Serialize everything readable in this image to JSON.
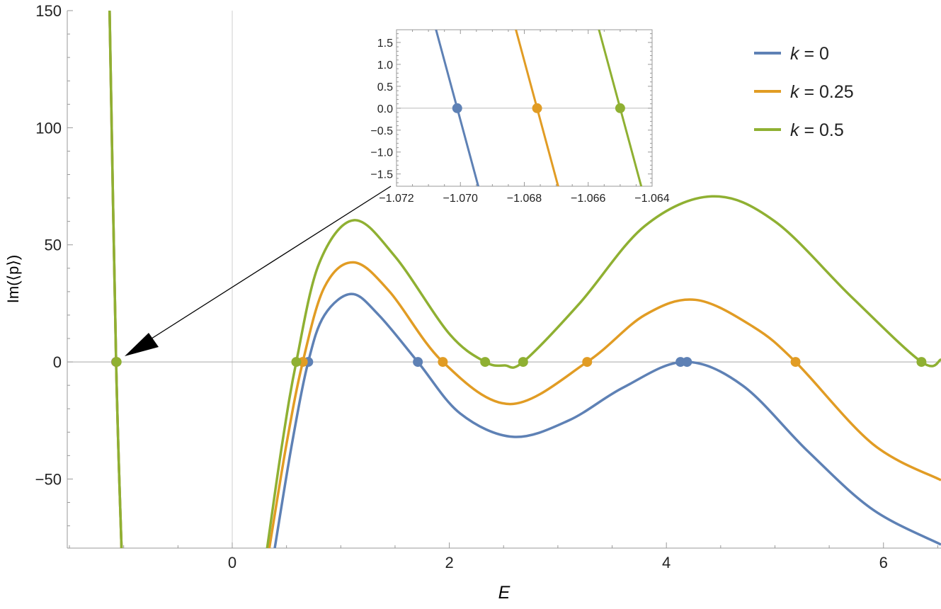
{
  "chart_data": {
    "type": "line",
    "xlabel": "E",
    "ylabel": "Im(⟨p⟩)",
    "xlim": [
      -1.52,
      6.53
    ],
    "ylim": [
      -79.5,
      150
    ],
    "x_ticks": [
      "0",
      "2",
      "4",
      "6"
    ],
    "x_tick_values": [
      0,
      2,
      4,
      6
    ],
    "y_ticks": [
      "150",
      "100",
      "50",
      "0",
      "−50"
    ],
    "y_tick_values": [
      150,
      100,
      50,
      0,
      -50
    ],
    "grid": "zero lines only",
    "legend_placement": "top-right",
    "series": [
      {
        "name": "k = 0",
        "k_value": "0",
        "color": "#5e81b5",
        "left_branch": [
          [
            -1.13,
            150
          ],
          [
            -1.07,
            0
          ],
          [
            -1.02,
            -80
          ]
        ],
        "points": [
          [
            0.39,
            -80
          ],
          [
            0.55,
            -35
          ],
          [
            0.7,
            0
          ],
          [
            0.85,
            20
          ],
          [
            1.1,
            29
          ],
          [
            1.35,
            20
          ],
          [
            1.71,
            0
          ],
          [
            2.1,
            -22
          ],
          [
            2.59,
            -32
          ],
          [
            3.1,
            -25
          ],
          [
            3.6,
            -11
          ],
          [
            4.16,
            0
          ],
          [
            4.7,
            -10
          ],
          [
            5.3,
            -38
          ],
          [
            5.9,
            -63
          ],
          [
            6.53,
            -78
          ]
        ],
        "zeros": [
          -1.0701,
          0.7,
          1.71,
          4.13,
          4.19
        ]
      },
      {
        "name": "k = 0.25",
        "k_value": "0.25",
        "color": "#e19c24",
        "left_branch": [
          [
            -1.13,
            150
          ],
          [
            -1.07,
            0
          ],
          [
            -1.02,
            -80
          ]
        ],
        "points": [
          [
            0.34,
            -80
          ],
          [
            0.5,
            -35
          ],
          [
            0.65,
            0
          ],
          [
            0.85,
            32
          ],
          [
            1.12,
            42.5
          ],
          [
            1.45,
            30
          ],
          [
            1.94,
            0
          ],
          [
            2.56,
            -18
          ],
          [
            3.27,
            0
          ],
          [
            3.8,
            20
          ],
          [
            4.27,
            26.5
          ],
          [
            4.8,
            15
          ],
          [
            5.19,
            0
          ],
          [
            5.9,
            -35
          ],
          [
            6.53,
            -50.5
          ]
        ],
        "zeros": [
          -1.0676,
          0.65,
          1.94,
          3.27,
          5.19
        ]
      },
      {
        "name": "k = 0.5",
        "k_value": "0.5",
        "color": "#8fb032",
        "left_branch": [
          [
            -1.13,
            150
          ],
          [
            -1.07,
            0
          ],
          [
            -1.02,
            -80
          ]
        ],
        "points": [
          [
            0.32,
            -80
          ],
          [
            0.46,
            -35
          ],
          [
            0.59,
            0
          ],
          [
            0.8,
            42
          ],
          [
            1.12,
            60.5
          ],
          [
            1.5,
            45
          ],
          [
            2.0,
            12
          ],
          [
            2.33,
            0
          ],
          [
            2.51,
            -1.5
          ],
          [
            2.68,
            0
          ],
          [
            3.2,
            25
          ],
          [
            3.8,
            58
          ],
          [
            4.42,
            70.7
          ],
          [
            5.0,
            60
          ],
          [
            5.7,
            28
          ],
          [
            6.35,
            0
          ],
          [
            6.53,
            1
          ]
        ],
        "zeros": [
          -1.065,
          0.59,
          2.33,
          2.68,
          6.35
        ]
      }
    ],
    "inset": {
      "xlim": [
        -1.072,
        -1.064
      ],
      "ylim": [
        -1.78,
        1.79
      ],
      "x_ticks": [
        "−1.072",
        "−1.070",
        "−1.068",
        "−1.066",
        "−1.064"
      ],
      "x_tick_values": [
        -1.072,
        -1.07,
        -1.068,
        -1.066,
        -1.064
      ],
      "y_ticks": [
        "1.5",
        "1.0",
        "0.5",
        "0.0",
        "−0.5",
        "−1.0",
        "−1.5"
      ],
      "y_tick_values": [
        1.5,
        1.0,
        0.5,
        0.0,
        -0.5,
        -1.0,
        -1.5
      ],
      "slope": -2700,
      "zoom_target": [
        -1.07,
        0
      ]
    },
    "legend": {
      "variable": "k",
      "entries": [
        "0",
        "0.25",
        "0.5"
      ]
    }
  }
}
